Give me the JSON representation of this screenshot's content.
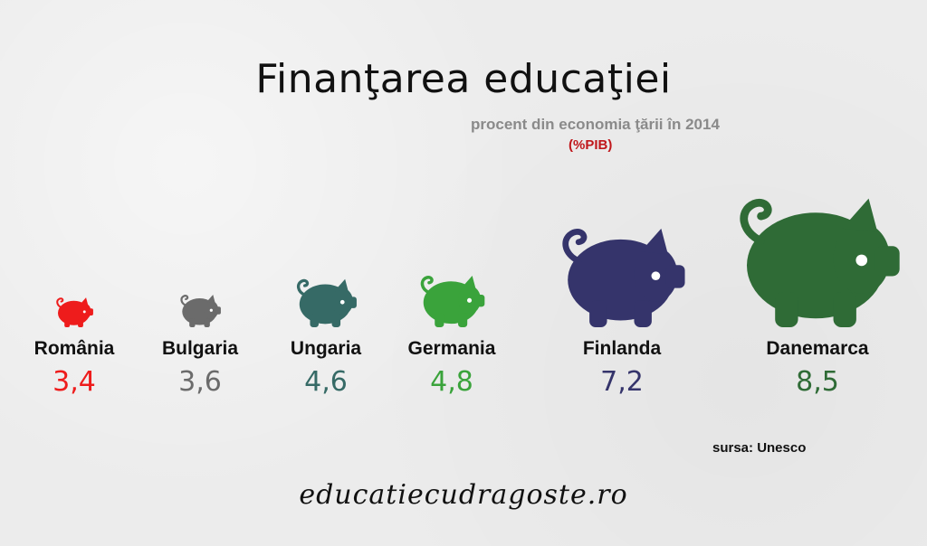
{
  "header": {
    "title": "Finanţarea educaţiei",
    "subtitle": "procent din economia ţării în 2014",
    "unit": "(%PIB)"
  },
  "footer": {
    "source": "sursa: Unesco",
    "site": "educatiecudragoste.ro"
  },
  "chart_data": {
    "type": "bar",
    "title": "Finanţarea educaţiei",
    "subtitle": "procent din economia ţării în 2014",
    "ylabel": "(%PIB)",
    "categories": [
      "România",
      "Bulgaria",
      "Ungaria",
      "Germania",
      "Finlanda",
      "Danemarca"
    ],
    "values": [
      3.4,
      3.6,
      4.6,
      4.8,
      7.2,
      8.5
    ],
    "value_labels": [
      "3,4",
      "3,6",
      "4,6",
      "4,8",
      "7,2",
      "8,5"
    ],
    "colors": [
      "#ee1c1c",
      "#6b6b6b",
      "#366a66",
      "#3aa33b",
      "#35346b",
      "#2f6b36"
    ],
    "mark": "piggy-bank-icon"
  }
}
